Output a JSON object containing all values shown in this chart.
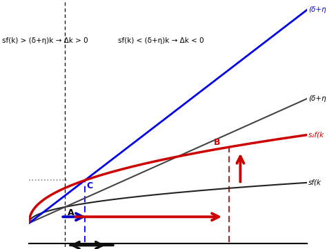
{
  "bg_color": "#ffffff",
  "k_max": 10.0,
  "y_max": 7.5,
  "y_min": -0.8,
  "slope_blue": 0.72,
  "slope_black2": 0.42,
  "s1": 0.22,
  "s2": 0.48,
  "fk_scale": 2.2,
  "fk_exp": 0.45,
  "k_B": 7.2,
  "label_top_blue": "(δ+η",
  "label_mid_black": "(δ+η",
  "label_red": "s₂f(k",
  "label_sf": "sf(k",
  "text_left": "sf(k) > (δ+η)k → Δk > 0",
  "text_right": "sf(k) < (δ+η)k → Δk < 0",
  "line_blue_color": "#0000ee",
  "line_red_color": "#cc0000",
  "line_black_color": "#222222",
  "line_black2_color": "#444444",
  "arrow_blue_color": "#0000cc",
  "arrow_red_color": "#cc0000",
  "arrow_bottom_color": "#111111",
  "dotted_color": "#888888"
}
